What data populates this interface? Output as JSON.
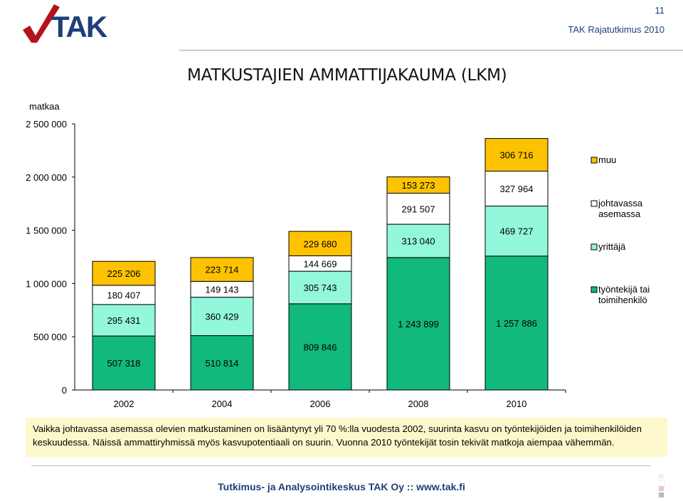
{
  "header": {
    "page_number": "11",
    "subtitle": "TAK Rajatutkimus 2010"
  },
  "slide": {
    "title": "MATKUSTAJIEN AMMATTIJAKAUMA (LKM)",
    "unit_label": "matkaa"
  },
  "note": {
    "text": "Vaikka johtavassa asemassa olevien matkustaminen on lisääntynyt yli 70 %:lla vuodesta 2002, suurinta kasvu on työntekijöiden ja toimihenkilöiden keskuudessa. Näissä ammattiryhmissä myös kasvupotentiaali on suurin. Vuonna 2010 työntekijät tosin tekivät matkoja aiempaa vähemmän."
  },
  "footer": {
    "text": "Tutkimus- ja Analysointikeskus TAK Oy :: www.tak.fi"
  },
  "chart_data": {
    "type": "bar",
    "stacked": true,
    "categories": [
      "2002",
      "2004",
      "2006",
      "2008",
      "2010"
    ],
    "ylim": [
      0,
      2500000
    ],
    "yticks": [
      0,
      500000,
      1000000,
      1500000,
      2000000,
      2500000
    ],
    "ytick_labels": [
      "0",
      "500 000",
      "1 000 000",
      "1 500 000",
      "2 000 000",
      "2 500 000"
    ],
    "grid": false,
    "legend_position": "right",
    "series": [
      {
        "name": "työntekijä tai toimihenkilö",
        "color": "#11b97a",
        "values": [
          507318,
          510814,
          809846,
          1243899,
          1257886
        ],
        "labels": [
          "507 318",
          "510 814",
          "809 846",
          "1 243 899",
          "1 257 886"
        ]
      },
      {
        "name": "yrittäjä",
        "color": "#93f7dc",
        "values": [
          295431,
          360429,
          305743,
          313040,
          469727
        ],
        "labels": [
          "295 431",
          "360 429",
          "305 743",
          "313 040",
          "469 727"
        ]
      },
      {
        "name": "johtavassa asemassa",
        "color": "#ffffff",
        "values": [
          180407,
          149143,
          144669,
          291507,
          327964
        ],
        "labels": [
          "180 407",
          "149 143",
          "144 669",
          "291 507",
          "327 964"
        ]
      },
      {
        "name": "muu",
        "color": "#fdc300",
        "values": [
          225206,
          223714,
          229680,
          153273,
          306716
        ],
        "labels": [
          "225 206",
          "223 714",
          "229 680",
          "153 273",
          "306 716"
        ]
      }
    ]
  }
}
